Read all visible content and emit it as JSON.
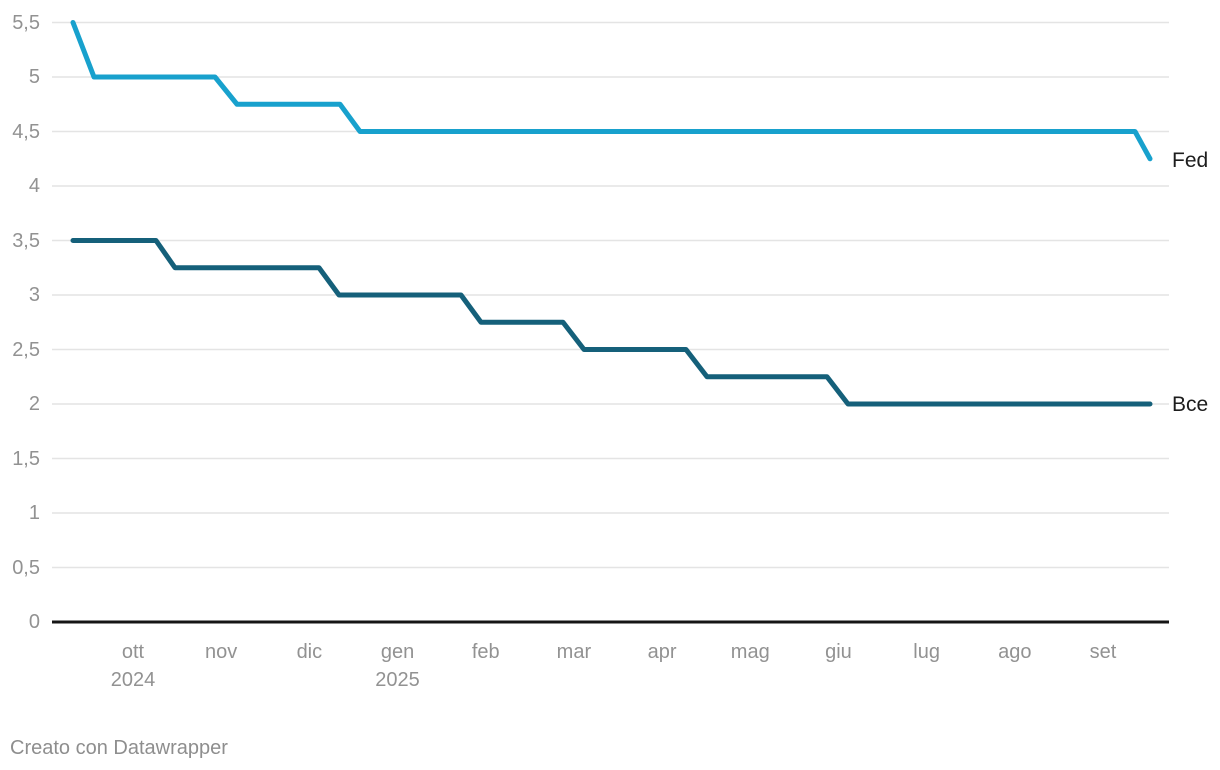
{
  "page": {
    "background": "#ffffff"
  },
  "footer": {
    "credit": "Creato con Datawrapper"
  },
  "colors": {
    "grid": "#e4e4e4",
    "axis": "#151515",
    "tick_text": "#929292",
    "series_label_text": "#1d1d1d",
    "footer_text": "#8e8e8e"
  },
  "chart_data": {
    "type": "line",
    "interpolation": "step",
    "title": "",
    "xlabel": "",
    "ylabel": "",
    "grid": true,
    "legend_position": "end-of-line",
    "y_axis": {
      "min": 0,
      "max": 5.5,
      "tick_step": 0.5,
      "decimal_separator": ",",
      "tick_labels": [
        "0",
        "0,5",
        "1",
        "1,5",
        "2",
        "2,5",
        "3",
        "3,5",
        "4",
        "4,5",
        "5",
        "5,5"
      ]
    },
    "x_axis": {
      "tick_labels": [
        "ott",
        "nov",
        "dic",
        "gen",
        "feb",
        "mar",
        "apr",
        "mag",
        "giu",
        "lug",
        "ago",
        "set"
      ],
      "year_labels": [
        {
          "month_index": 0,
          "label": "2024"
        },
        {
          "month_index": 3,
          "label": "2025"
        }
      ],
      "range_note": "late set 2024 to late set 2025"
    },
    "series": [
      {
        "name": "Fed",
        "color": "#18a1cd",
        "changes": [
          {
            "value": 5.5,
            "period": "fino a set 2024"
          },
          {
            "value": 5.0,
            "period": "da set/ott 2024"
          },
          {
            "value": 4.75,
            "period": "da nov 2024"
          },
          {
            "value": 4.5,
            "period": "da dic 2024"
          },
          {
            "value": 4.25,
            "period": "da set 2025"
          }
        ],
        "points": [
          [
            73,
            5.5
          ],
          [
            94,
            5.0
          ],
          [
            215,
            5.0
          ],
          [
            237,
            4.75
          ],
          [
            340,
            4.75
          ],
          [
            360,
            4.5
          ],
          [
            1135,
            4.5
          ],
          [
            1150,
            4.25
          ]
        ]
      },
      {
        "name": "Bce",
        "color": "#15607a",
        "changes": [
          {
            "value": 3.5,
            "period": "fino a ott 2024"
          },
          {
            "value": 3.25,
            "period": "da ott 2024"
          },
          {
            "value": 3.0,
            "period": "da dic 2024"
          },
          {
            "value": 2.75,
            "period": "da feb 2025"
          },
          {
            "value": 2.5,
            "period": "da mar 2025"
          },
          {
            "value": 2.25,
            "period": "da apr 2025"
          },
          {
            "value": 2.0,
            "period": "da giu 2025"
          }
        ],
        "points": [
          [
            73,
            3.5
          ],
          [
            156,
            3.5
          ],
          [
            175,
            3.25
          ],
          [
            319,
            3.25
          ],
          [
            339,
            3.0
          ],
          [
            461,
            3.0
          ],
          [
            481,
            2.75
          ],
          [
            563,
            2.75
          ],
          [
            584,
            2.5
          ],
          [
            686,
            2.5
          ],
          [
            707,
            2.25
          ],
          [
            827,
            2.25
          ],
          [
            848,
            2.0
          ],
          [
            1150,
            2.0
          ]
        ]
      }
    ]
  }
}
